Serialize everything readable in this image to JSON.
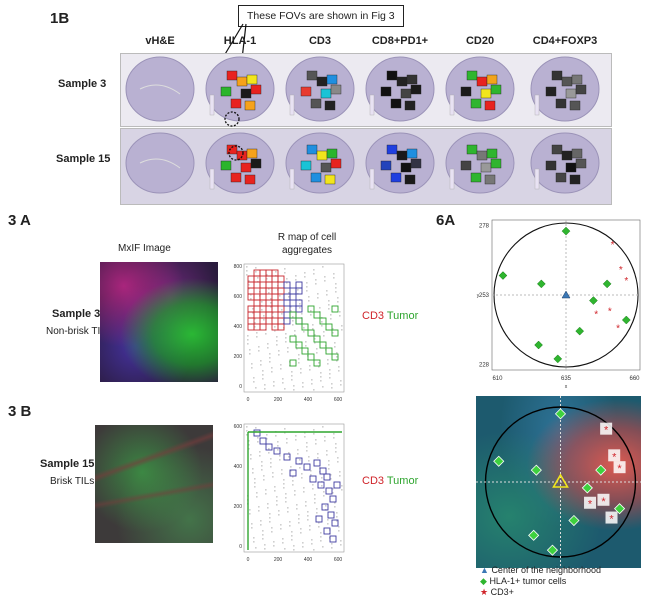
{
  "fig1b": {
    "label": "1B",
    "callout": "These FOVs are shown in Fig 3",
    "columns": [
      "vH&E",
      "HLA-1",
      "CD3",
      "CD8+PD1+",
      "CD20",
      "CD4+FOXP3"
    ],
    "rows": [
      "Sample 3",
      "Sample 15"
    ]
  },
  "fig3a": {
    "label": "3 A",
    "mxif_title": "MxIF Image",
    "rmap_title": "R map of cell aggregates",
    "sample": "Sample 3",
    "desc": "Non-brisk TILs",
    "legend_cd3": "CD3",
    "legend_tumor": "Tumor",
    "x_ticks": [
      "0",
      "200",
      "400",
      "600"
    ],
    "y_ticks": [
      "0",
      "200",
      "400",
      "600",
      "800"
    ]
  },
  "fig3b": {
    "label": "3 B",
    "sample": "Sample 15",
    "desc": "Brisk TILs",
    "legend_cd3": "CD3",
    "legend_tumor": "Tumor",
    "x_ticks": [
      "0",
      "200",
      "400",
      "600"
    ],
    "y_ticks": [
      "0",
      "200",
      "400",
      "600"
    ]
  },
  "fig6a": {
    "label": "6A",
    "x_ticks": [
      "610",
      "635",
      "660"
    ],
    "y_ticks": [
      "278",
      "253",
      "228"
    ],
    "xlabel": "x",
    "ylabel": "y",
    "legend": [
      {
        "symbol": "▲",
        "color": "#3b78b5",
        "text": "Center of the neighborhood"
      },
      {
        "symbol": "◆",
        "color": "#2fb52f",
        "text": "HLA-1+ tumor cells"
      },
      {
        "symbol": "★",
        "color": "#d0242a",
        "text": "CD3+"
      }
    ]
  },
  "chart_data": [
    {
      "type": "scatter",
      "title": "",
      "xlabel": "x",
      "ylabel": "y",
      "xlim": [
        608,
        662
      ],
      "ylim": [
        226,
        280
      ],
      "series": [
        {
          "name": "Center of the neighborhood",
          "points": [
            [
              635,
              253
            ]
          ]
        },
        {
          "name": "HLA-1+ tumor cells",
          "points": [
            [
              635,
              276
            ],
            [
              612,
              260
            ],
            [
              626,
              257
            ],
            [
              645,
              251
            ],
            [
              650,
              257
            ],
            [
              657,
              244
            ],
            [
              625,
              235
            ],
            [
              632,
              230
            ],
            [
              640,
              240
            ]
          ]
        },
        {
          "name": "CD3+",
          "points": [
            [
              652,
              271
            ],
            [
              655,
              262
            ],
            [
              657,
              258
            ],
            [
              651,
              247
            ],
            [
              654,
              241
            ],
            [
              646,
              246
            ]
          ]
        }
      ]
    }
  ]
}
